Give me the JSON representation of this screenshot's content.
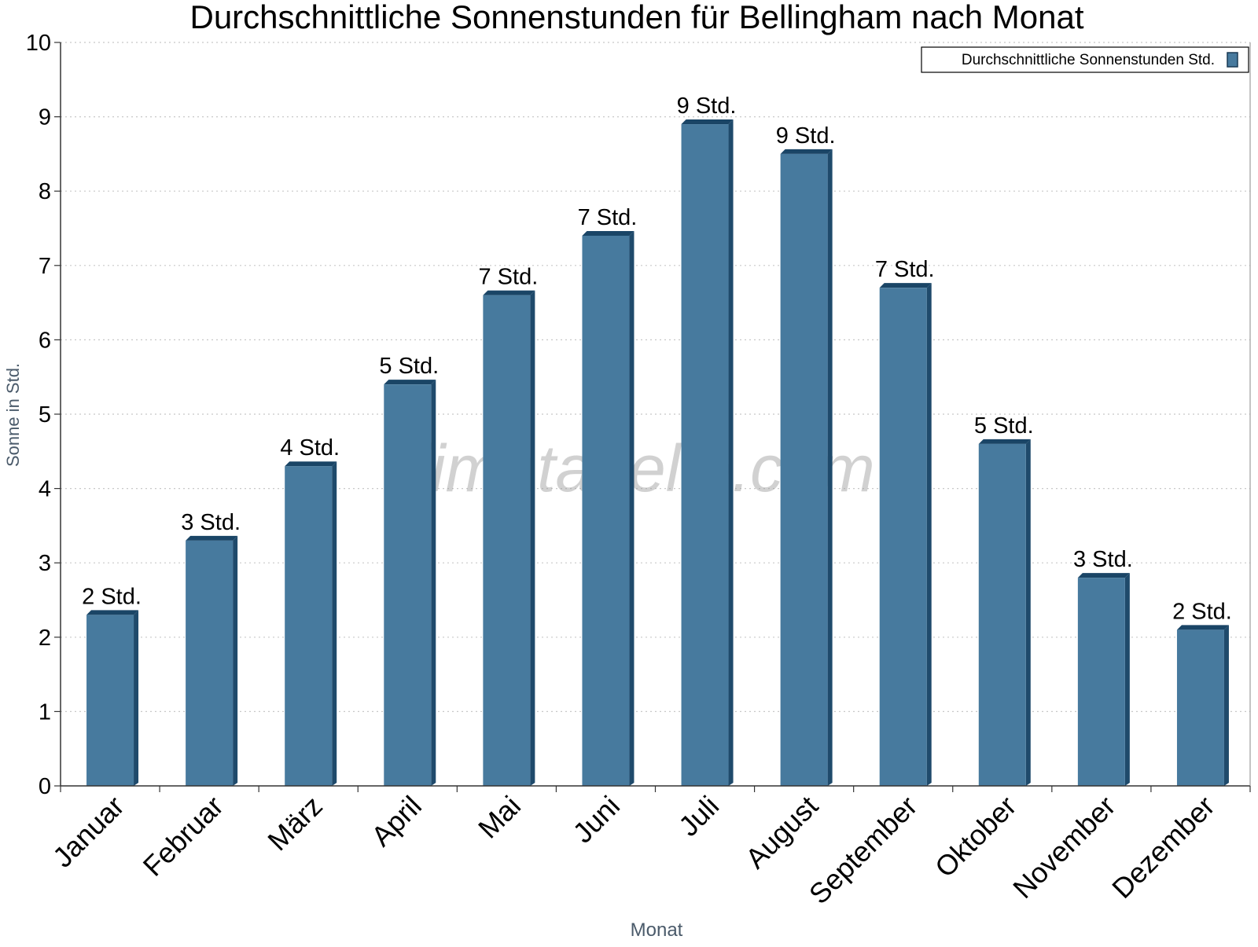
{
  "chart_data": {
    "type": "bar",
    "title": "Durchschnittliche Sonnenstunden für Bellingham nach Monat",
    "xlabel": "Monat",
    "ylabel": "Sonne in Std.",
    "ylim": [
      0,
      10
    ],
    "yticks": [
      "0",
      "1",
      "2",
      "3",
      "4",
      "5",
      "6",
      "7",
      "8",
      "9",
      "10"
    ],
    "grid": true,
    "legend_position": "top-right",
    "watermark": "klimatabelle.com",
    "categories": [
      "Januar",
      "Februar",
      "März",
      "April",
      "Mai",
      "Juni",
      "Juli",
      "August",
      "September",
      "Oktober",
      "November",
      "Dezember"
    ],
    "series": [
      {
        "name": "Durchschnittliche Sonnenstunden Std.",
        "color": "#477a9e",
        "values": [
          2.3,
          3.3,
          4.3,
          5.4,
          6.6,
          7.4,
          8.9,
          8.5,
          6.7,
          4.6,
          2.8,
          2.1
        ],
        "labels": [
          "2 Std.",
          "3 Std.",
          "4 Std.",
          "5 Std.",
          "7 Std.",
          "7 Std.",
          "9 Std.",
          "9 Std.",
          "7 Std.",
          "5 Std.",
          "3 Std.",
          "2 Std."
        ]
      }
    ]
  }
}
